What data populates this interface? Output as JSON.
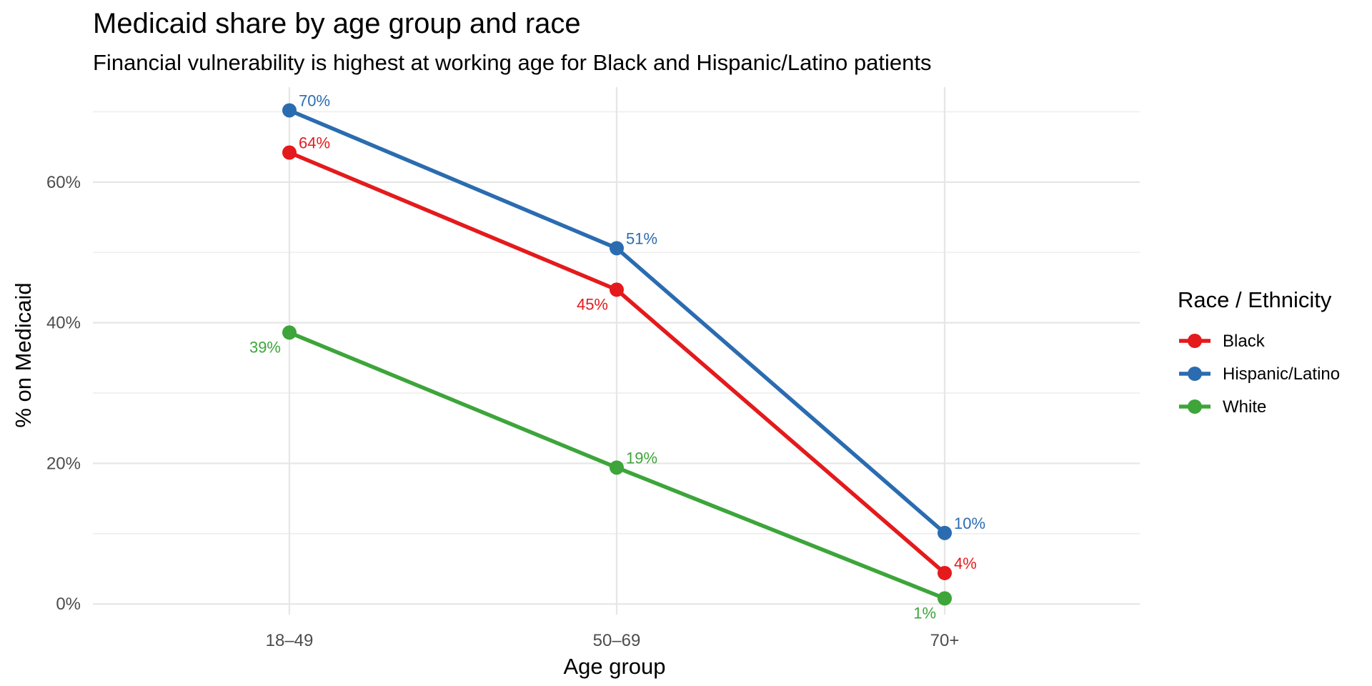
{
  "chart_data": {
    "type": "line",
    "title": "Medicaid share by age group and race",
    "subtitle": "Financial vulnerability is highest at working age for Black and Hispanic/Latino patients",
    "xlabel": "Age group",
    "ylabel": "% on Medicaid",
    "categories": [
      "18–49",
      "50–69",
      "70+"
    ],
    "ylim": [
      -1.5,
      73.5
    ],
    "yticks": [
      0,
      20,
      40,
      60
    ],
    "ytick_labels": [
      "0%",
      "20%",
      "40%",
      "60%"
    ],
    "grid": true,
    "legend_title": "Race / Ethnicity",
    "legend_position": "right",
    "series": [
      {
        "name": "Black",
        "color": "#e41a1c",
        "values": [
          64.2,
          44.7,
          4.4
        ],
        "labels": [
          "64%",
          "45%",
          "4%"
        ],
        "label_placement": [
          "above-right",
          "below-left",
          "above-right"
        ]
      },
      {
        "name": "Hispanic/Latino",
        "color": "#2b6cb0",
        "values": [
          70.2,
          50.6,
          10.1
        ],
        "labels": [
          "70%",
          "51%",
          "10%"
        ],
        "label_placement": [
          "above-right",
          "above-right",
          "above-right"
        ]
      },
      {
        "name": "White",
        "color": "#3da53a",
        "values": [
          38.6,
          19.4,
          0.8
        ],
        "labels": [
          "39%",
          "19%",
          "1%"
        ],
        "label_placement": [
          "below-left",
          "above-right",
          "below-left"
        ]
      }
    ]
  }
}
